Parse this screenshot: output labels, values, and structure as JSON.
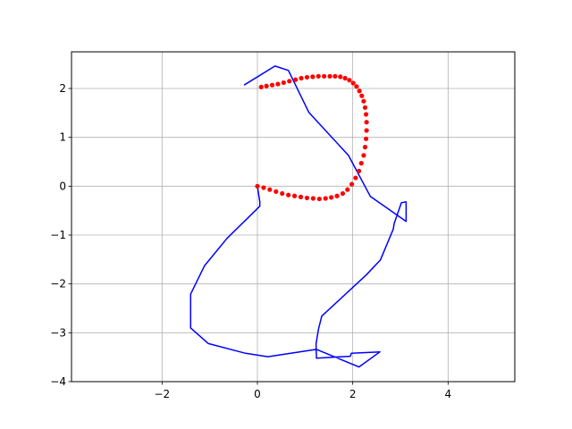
{
  "chart_data": {
    "type": "line",
    "title": "",
    "xlabel": "",
    "ylabel": "",
    "xlim": [
      -3.9,
      5.4
    ],
    "ylim": [
      -4.0,
      2.75
    ],
    "grid": true,
    "x_ticks": [
      -2,
      0,
      2,
      4
    ],
    "x_tick_labels": [
      "−2",
      "0",
      "2",
      "4"
    ],
    "y_ticks": [
      -4,
      -3,
      -2,
      -1,
      0,
      1,
      2
    ],
    "y_tick_labels": [
      "−4",
      "−3",
      "−2",
      "−1",
      "0",
      "1",
      "2"
    ],
    "series": [
      {
        "style": "line",
        "color": "#0000ff",
        "x": [
          -0.28,
          0.37,
          0.65,
          1.08,
          1.91,
          2.37,
          3.12,
          3.12,
          3.02,
          2.87,
          2.85,
          2.58,
          2.28,
          1.35,
          1.28,
          1.23,
          1.24,
          1.95,
          1.97,
          2.57,
          2.13,
          1.24,
          0.22,
          -0.25,
          -1.03,
          -1.4,
          -1.4,
          -1.14,
          -1.11,
          -0.64,
          0.05,
          0.05,
          0.0
        ],
        "y": [
          2.07,
          2.46,
          2.37,
          1.51,
          0.63,
          -0.21,
          -0.72,
          -0.32,
          -0.34,
          -0.76,
          -0.88,
          -1.51,
          -1.82,
          -2.66,
          -2.93,
          -3.23,
          -3.52,
          -3.48,
          -3.42,
          -3.39,
          -3.7,
          -3.34,
          -3.49,
          -3.42,
          -3.22,
          -2.9,
          -2.21,
          -1.69,
          -1.63,
          -1.07,
          -0.41,
          -0.32,
          0.0
        ]
      },
      {
        "style": "scatter",
        "color": "#ff0000",
        "x": [
          0.0,
          0.13,
          0.26,
          0.39,
          0.52,
          0.65,
          0.78,
          0.91,
          1.04,
          1.17,
          1.3,
          1.43,
          1.55,
          1.67,
          1.79,
          1.89,
          1.98,
          2.06,
          2.13,
          2.18,
          2.23,
          2.26,
          2.28,
          2.29,
          2.29,
          2.28,
          2.26,
          2.23,
          2.19,
          2.14,
          2.08,
          2.01,
          1.93,
          1.84,
          1.74,
          1.63,
          1.52,
          1.4,
          1.28,
          1.16,
          1.04,
          0.92,
          0.8,
          0.67,
          0.55,
          0.43,
          0.31,
          0.19,
          0.08
        ],
        "y": [
          0.0,
          -0.03,
          -0.07,
          -0.11,
          -0.15,
          -0.18,
          -0.2,
          -0.22,
          -0.24,
          -0.25,
          -0.26,
          -0.25,
          -0.23,
          -0.2,
          -0.15,
          -0.07,
          0.04,
          0.17,
          0.31,
          0.47,
          0.63,
          0.8,
          0.97,
          1.14,
          1.31,
          1.47,
          1.61,
          1.74,
          1.85,
          1.95,
          2.04,
          2.11,
          2.17,
          2.21,
          2.24,
          2.25,
          2.25,
          2.25,
          2.25,
          2.24,
          2.23,
          2.21,
          2.18,
          2.15,
          2.12,
          2.09,
          2.07,
          2.05,
          2.03
        ]
      }
    ]
  }
}
